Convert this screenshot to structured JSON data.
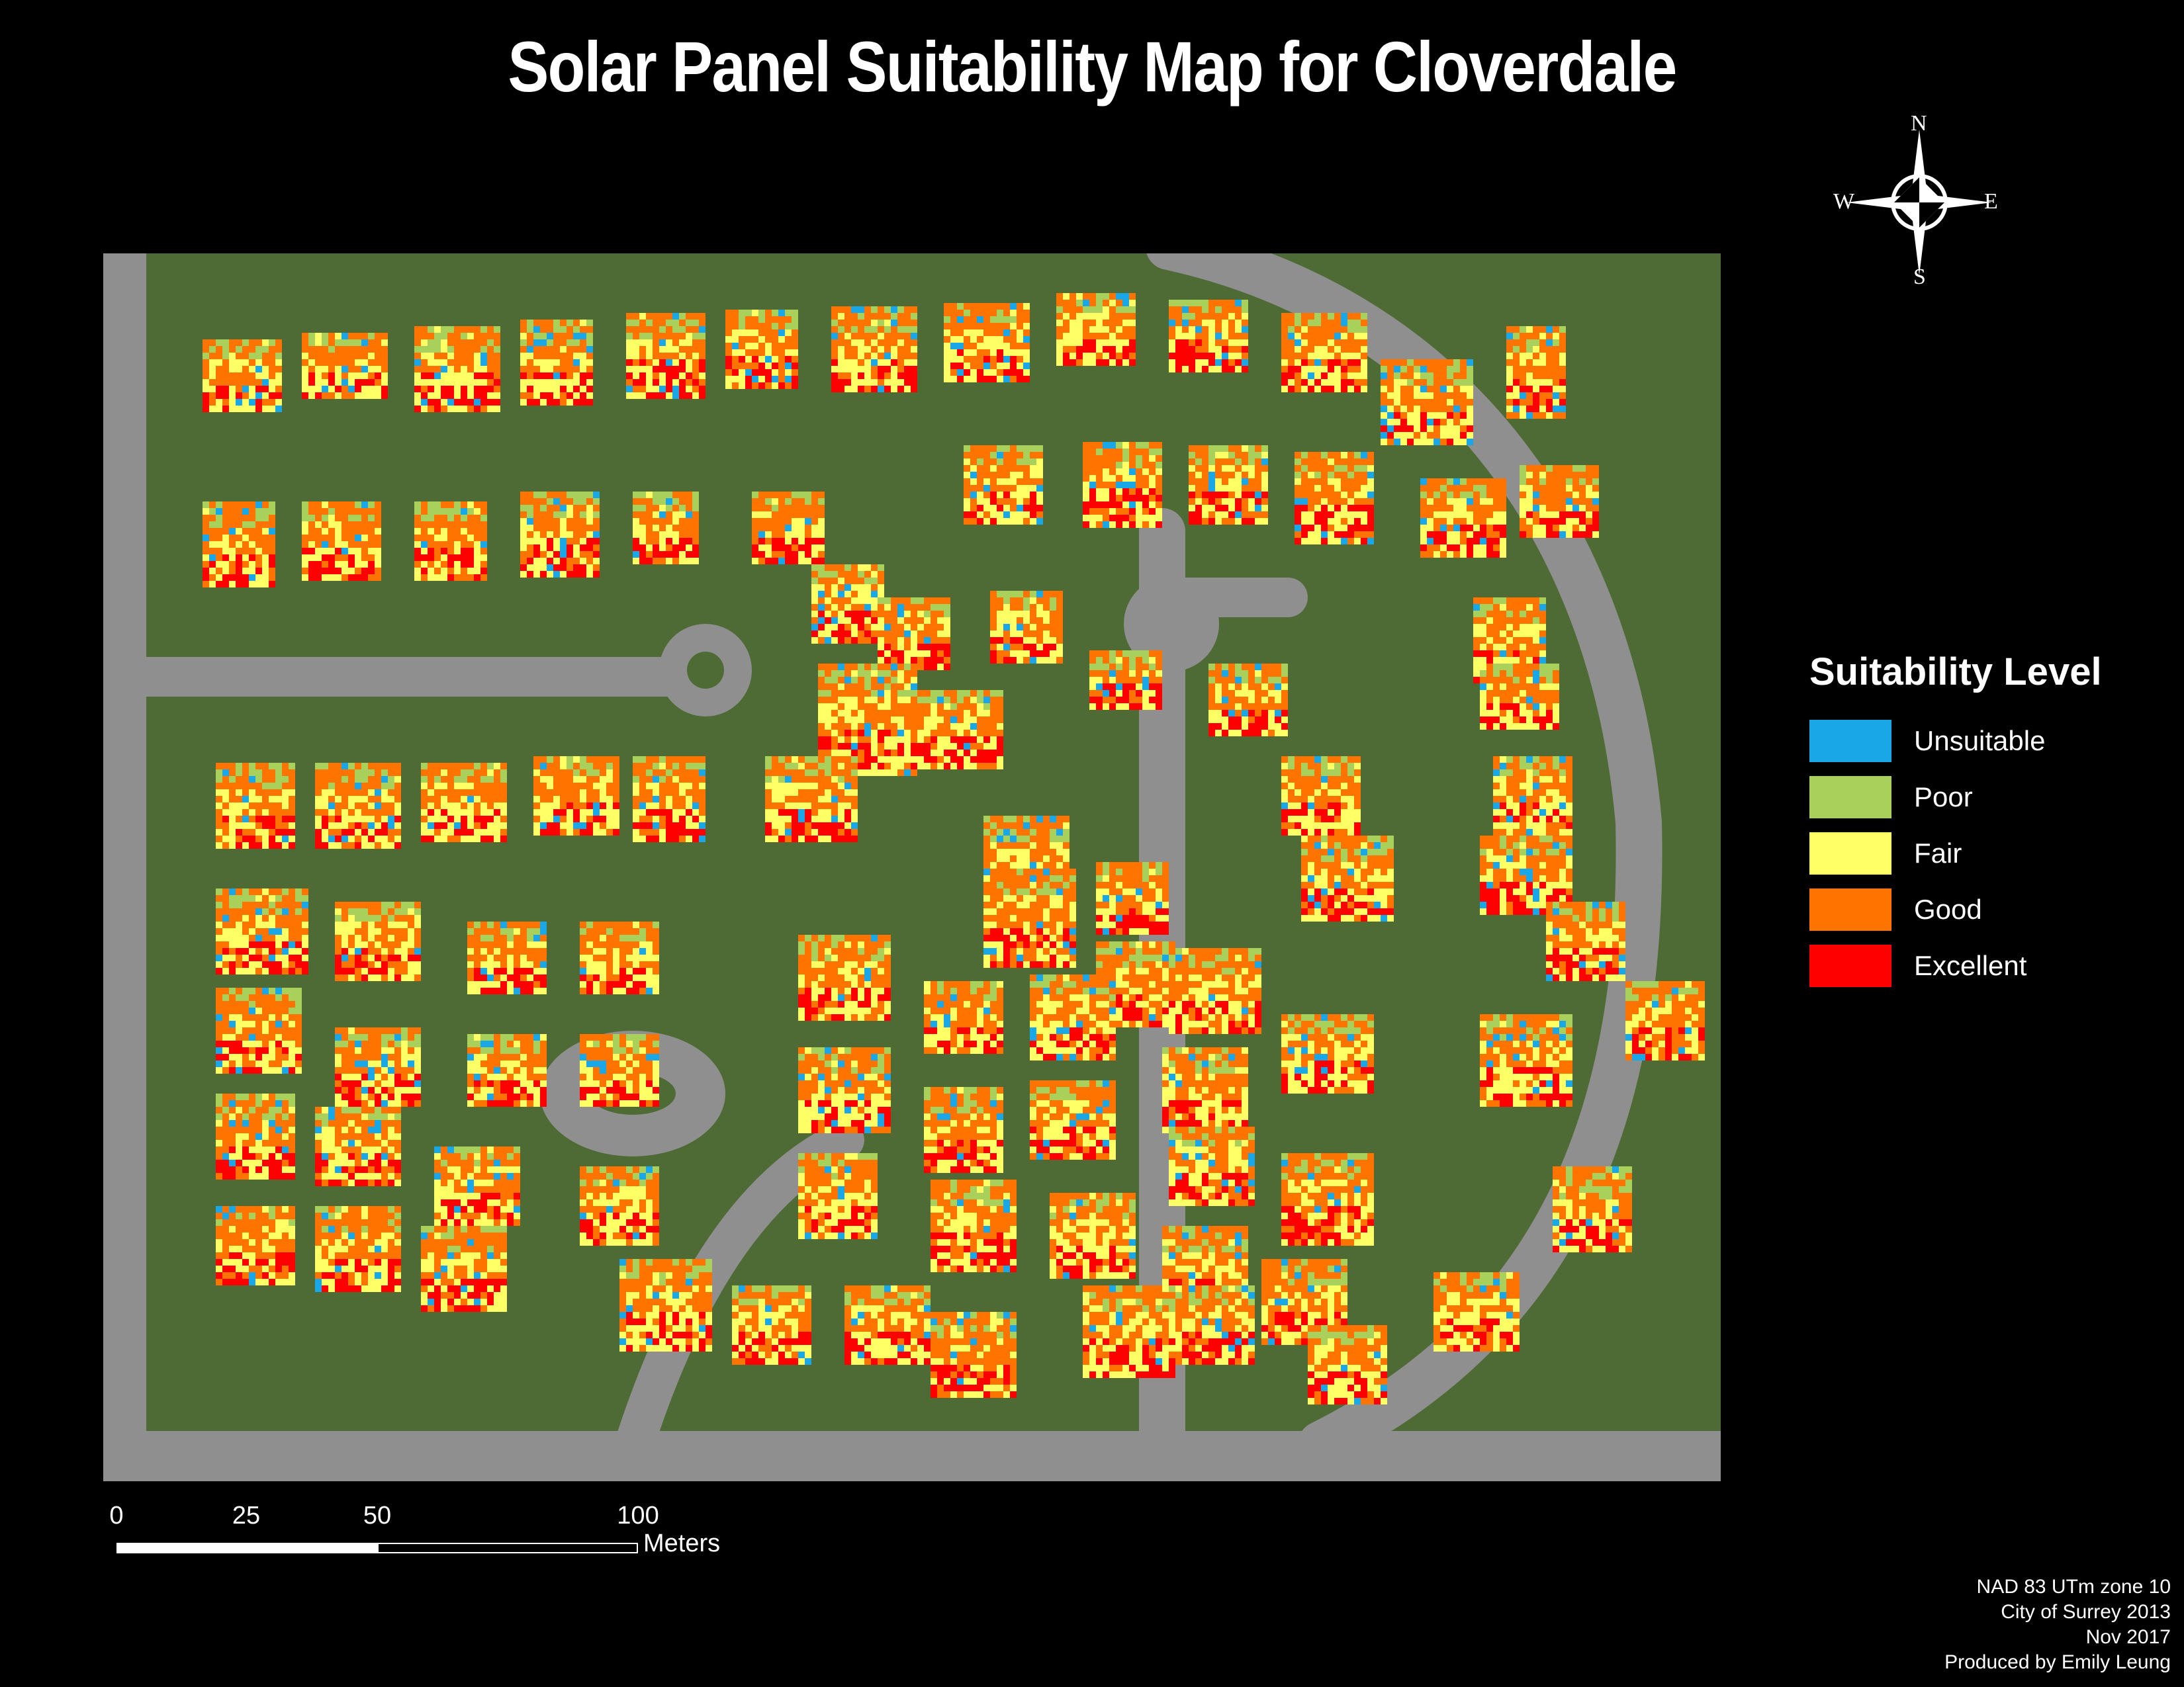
{
  "title": "Solar Panel Suitability Map for Cloverdale",
  "north_arrow": {
    "n": "N",
    "s": "S",
    "e": "E",
    "w": "W"
  },
  "legend": {
    "title": "Suitability Level",
    "items": [
      {
        "label": "Unsuitable",
        "color": "#1aa7e8"
      },
      {
        "label": "Poor",
        "color": "#a8d05a"
      },
      {
        "label": "Fair",
        "color": "#ffff66"
      },
      {
        "label": "Good",
        "color": "#ff7300"
      },
      {
        "label": "Excellent",
        "color": "#ff0000"
      }
    ]
  },
  "scale_bar": {
    "ticks": [
      "0",
      "25",
      "50",
      "100"
    ],
    "units": "Meters"
  },
  "credits": [
    "NAD 83 UTm zone 10",
    "City of Surrey 2013",
    "Nov 2017",
    "Produced by Emily Leung"
  ],
  "colors": {
    "road": "#8e8f8e",
    "grass": "#4f6b35",
    "shadow": "#1f2a17",
    "driveway": "#b5b5b0"
  }
}
